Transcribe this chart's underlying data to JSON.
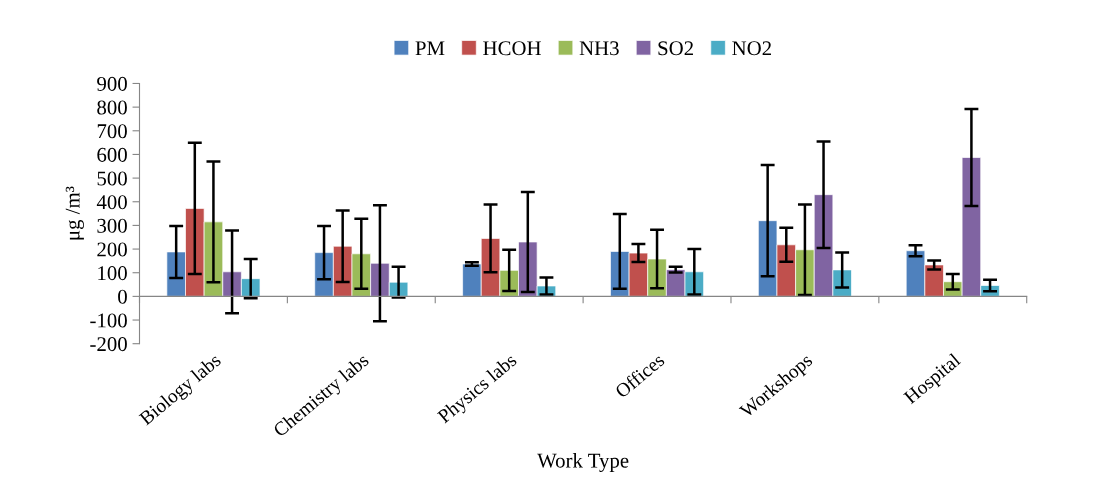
{
  "chart_data": {
    "type": "bar",
    "xlabel": "Work Type",
    "ylabel": "μg /m³",
    "categories": [
      "Biology labs",
      "Chemistry labs",
      "Physics labs",
      "Offices",
      "Workshops",
      "Hospital"
    ],
    "series": [
      {
        "name": "PM",
        "color": "#4f81bd",
        "values": [
          188,
          185,
          137,
          190,
          320,
          193
        ],
        "errors": [
          110,
          113,
          7,
          158,
          235,
          23
        ]
      },
      {
        "name": "HCOH",
        "color": "#c0504d",
        "values": [
          372,
          212,
          245,
          183,
          218,
          133
        ],
        "errors": [
          277,
          151,
          143,
          38,
          72,
          19
        ]
      },
      {
        "name": "NH3",
        "color": "#9bbb59",
        "values": [
          315,
          180,
          110,
          158,
          197,
          62
        ],
        "errors": [
          255,
          148,
          87,
          124,
          191,
          33
        ]
      },
      {
        "name": "SO2",
        "color": "#8064a2",
        "values": [
          104,
          140,
          230,
          113,
          430,
          587
        ],
        "errors": [
          175,
          245,
          211,
          12,
          225,
          205
        ]
      },
      {
        "name": "NO2",
        "color": "#4bacc6",
        "values": [
          75,
          60,
          44,
          104,
          112,
          46
        ],
        "errors": [
          83,
          65,
          36,
          96,
          74,
          24
        ]
      }
    ],
    "ylim": [
      -200,
      900
    ],
    "yticks": [
      -200,
      -100,
      0,
      100,
      200,
      300,
      400,
      500,
      600,
      700,
      800,
      900
    ],
    "legend": "top"
  }
}
